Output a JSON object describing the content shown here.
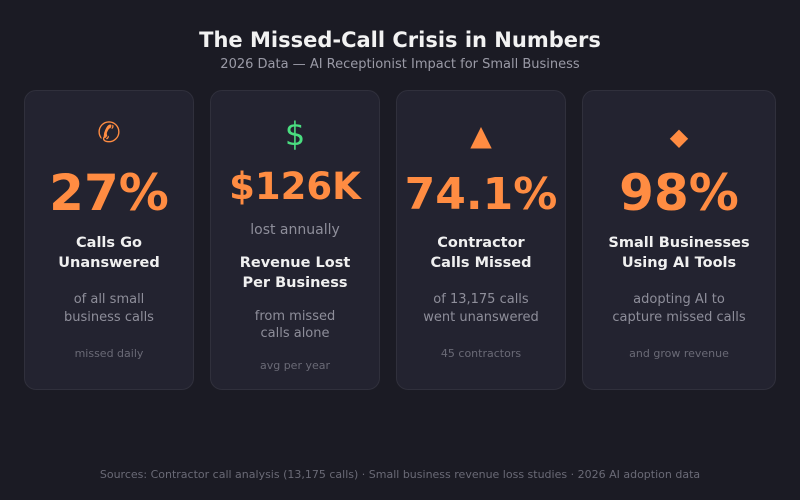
{
  "header": {
    "title": "The Missed-Call Crisis in Numbers",
    "subtitle": "2026 Data — AI Receptionist Impact for Small Business"
  },
  "colors": {
    "background": "#1b1b24",
    "card": "#232330",
    "accent": "#ff8c42",
    "green": "#4ade80"
  },
  "cards": [
    {
      "icon": "phone-icon",
      "glyph": "✆",
      "value": "27%",
      "title1": "Calls Go",
      "title2": "Unanswered",
      "desc1": "of all small",
      "desc2": "business calls",
      "foot": "missed daily"
    },
    {
      "icon": "dollar-icon",
      "glyph": "$",
      "value": "$126K",
      "sub": "lost annually",
      "title1": "Revenue Lost",
      "title2": "Per Business",
      "desc1": "from missed",
      "desc2": "calls alone",
      "foot": "avg per year"
    },
    {
      "icon": "warning-triangle-icon",
      "glyph": "▲",
      "value": "74.1%",
      "title1": "Contractor",
      "title2": "Calls Missed",
      "desc1": "of 13,175 calls",
      "desc2": "went unanswered",
      "foot": "45 contractors"
    },
    {
      "icon": "diamond-icon",
      "glyph": "◆",
      "value": "98%",
      "title1": "Small Businesses",
      "title2": "Using AI Tools",
      "desc1": "adopting AI to",
      "desc2": "capture missed calls",
      "foot": "and grow revenue"
    }
  ],
  "footer": {
    "sources": "Sources: Contractor call analysis (13,175 calls) · Small business revenue loss studies · 2026 AI adoption data"
  }
}
